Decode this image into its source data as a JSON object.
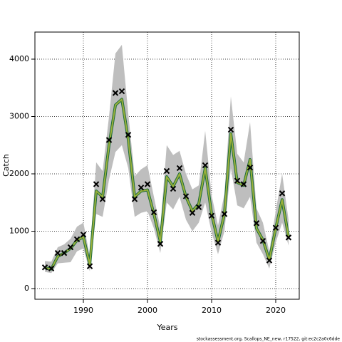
{
  "chart_data": {
    "type": "line",
    "xlabel": "Years",
    "ylabel": "Catch",
    "footnote": "stockassessment.org, Scallops_NE_new, r17522, git:ec2c2a0c6dde",
    "x": [
      1984,
      1985,
      1986,
      1987,
      1988,
      1989,
      1990,
      1991,
      1992,
      1993,
      1994,
      1995,
      1996,
      1997,
      1998,
      1999,
      2000,
      2001,
      2002,
      2003,
      2004,
      2005,
      2006,
      2007,
      2008,
      2009,
      2010,
      2011,
      2012,
      2013,
      2014,
      2015,
      2016,
      2017,
      2018,
      2019,
      2020,
      2021,
      2022
    ],
    "band": {
      "color": "#bebebe",
      "upper": [
        480,
        470,
        720,
        770,
        870,
        1080,
        1150,
        560,
        2200,
        2050,
        3000,
        4100,
        4250,
        3050,
        1960,
        2080,
        2150,
        1600,
        1060,
        2500,
        2330,
        2400,
        2000,
        1730,
        1800,
        2750,
        1630,
        1100,
        1650,
        3350,
        2350,
        2200,
        2900,
        1400,
        1150,
        650,
        1350,
        2000,
        1200
      ],
      "lower": [
        290,
        270,
        440,
        450,
        460,
        650,
        700,
        300,
        1300,
        1250,
        1900,
        2380,
        2500,
        2100,
        1250,
        1320,
        1350,
        1050,
        620,
        1500,
        1380,
        1600,
        1200,
        1000,
        1150,
        1500,
        980,
        600,
        1000,
        2100,
        1450,
        1400,
        1600,
        800,
        600,
        350,
        800,
        1150,
        750
      ]
    },
    "series": [
      {
        "color": "#9bb03a",
        "marker": "line",
        "values": [
          360,
          340,
          560,
          620,
          700,
          840,
          900,
          420,
          1700,
          1600,
          2500,
          3200,
          3300,
          2600,
          1600,
          1700,
          1720,
          1300,
          820,
          1950,
          1780,
          2000,
          1600,
          1350,
          1480,
          2100,
          1300,
          820,
          1300,
          2700,
          1850,
          1800,
          2250,
          1050,
          850,
          500,
          1050,
          1550,
          900
        ]
      },
      {
        "color": "#000000",
        "marker": "x",
        "values": [
          370,
          350,
          620,
          620,
          720,
          860,
          940,
          390,
          1820,
          1560,
          2590,
          3410,
          3440,
          2680,
          1560,
          1760,
          1820,
          1330,
          780,
          2050,
          1740,
          2100,
          1610,
          1320,
          1420,
          2150,
          1270,
          800,
          1300,
          2770,
          1880,
          1820,
          2110,
          1140,
          830,
          490,
          1060,
          1660,
          890
        ]
      }
    ],
    "xlim": [
      1982.44,
      2023.67
    ],
    "xticks": [
      1990,
      2000,
      2010,
      2020
    ],
    "ylim": [
      -186,
      4472
    ],
    "yticks": [
      0,
      1000,
      2000,
      3000,
      4000
    ],
    "grid": true
  }
}
